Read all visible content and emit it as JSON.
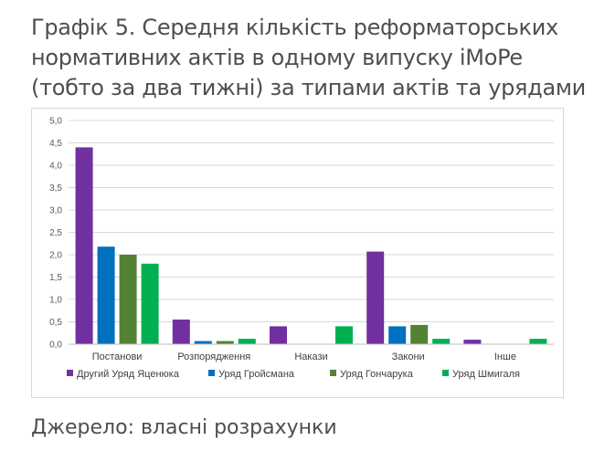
{
  "page": {
    "title_lines": [
      "Графік 5. Середня кількість реформаторських",
      "нормативних актів в одному випуску iMoPe",
      "(тобто за два тижні) за типами актів та урядами"
    ],
    "source": "Джерело: власні розрахунки"
  },
  "chart_data": {
    "type": "bar",
    "title": "Графік 5. Середня кількість реформаторських нормативних актів в одному випуску iMoPe (тобто за два тижні) за типами актів та урядами",
    "xlabel": "",
    "ylabel": "",
    "categories": [
      "Постанови",
      "Розпорядження",
      "Накази",
      "Закони",
      "Інше"
    ],
    "ylim": [
      0,
      5
    ],
    "yticks": [
      "0,0",
      "0,5",
      "1,0",
      "1,5",
      "2,0",
      "2,5",
      "3,0",
      "3,5",
      "4,0",
      "4,5",
      "5,0"
    ],
    "grid": true,
    "legend_position": "bottom",
    "series": [
      {
        "name": "Другий Уряд Яценюка",
        "color": "#7030a0",
        "values": [
          4.4,
          0.55,
          0.4,
          2.07,
          0.1
        ]
      },
      {
        "name": "Уряд Гройсмана",
        "color": "#0070c0",
        "values": [
          2.18,
          0.07,
          0.0,
          0.4,
          0.0
        ]
      },
      {
        "name": "Уряд Гончарука",
        "color": "#548235",
        "values": [
          2.0,
          0.07,
          0.0,
          0.43,
          0.0
        ]
      },
      {
        "name": "Уряд Шмигаля",
        "color": "#00b050",
        "values": [
          1.8,
          0.12,
          0.4,
          0.12,
          0.12
        ]
      }
    ]
  }
}
